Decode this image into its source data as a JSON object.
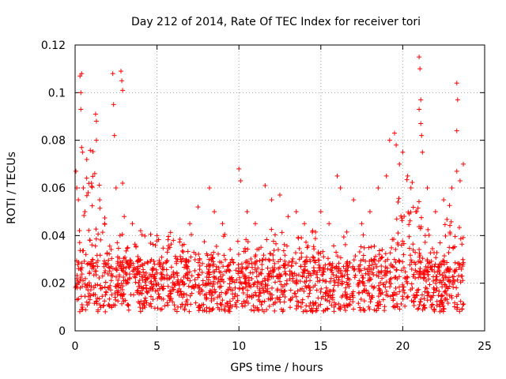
{
  "chart_data": {
    "type": "scatter",
    "title": "Day 212 of 2014, Rate Of TEC Index for receiver tori",
    "xlabel": "GPS time / hours",
    "ylabel": "ROTI / TECUs",
    "xlim": [
      0,
      25
    ],
    "ylim": [
      0,
      0.12
    ],
    "x_ticks": [
      0,
      5,
      10,
      15,
      20,
      25
    ],
    "x_tick_labels": [
      "0",
      "5",
      "10",
      "15",
      "20",
      "25"
    ],
    "y_ticks": [
      0,
      0.02,
      0.04,
      0.06,
      0.08,
      0.1,
      0.12
    ],
    "y_tick_labels": [
      "0",
      "0.02",
      "0.04",
      "0.06",
      "0.08",
      "0.1",
      "0.12"
    ],
    "grid": true,
    "marker": "+",
    "marker_color": "#ff0000",
    "series": [
      {
        "name": "ROTI",
        "description_baseline_range": [
          0.008,
          0.03
        ],
        "points": [
          [
            0.05,
            0.067
          ],
          [
            0.1,
            0.06
          ],
          [
            0.2,
            0.055
          ],
          [
            0.3,
            0.107
          ],
          [
            0.35,
            0.1
          ],
          [
            0.35,
            0.093
          ],
          [
            0.4,
            0.108
          ],
          [
            0.4,
            0.077
          ],
          [
            0.45,
            0.075
          ],
          [
            0.5,
            0.06
          ],
          [
            0.6,
            0.05
          ],
          [
            0.8,
            0.058
          ],
          [
            1.0,
            0.062
          ],
          [
            1.2,
            0.066
          ],
          [
            1.25,
            0.091
          ],
          [
            1.3,
            0.088
          ],
          [
            1.3,
            0.08
          ],
          [
            1.5,
            0.055
          ],
          [
            1.8,
            0.045
          ],
          [
            2.3,
            0.108
          ],
          [
            2.35,
            0.095
          ],
          [
            2.4,
            0.082
          ],
          [
            2.5,
            0.06
          ],
          [
            2.8,
            0.109
          ],
          [
            2.85,
            0.105
          ],
          [
            2.9,
            0.101
          ],
          [
            2.9,
            0.062
          ],
          [
            3.0,
            0.048
          ],
          [
            3.5,
            0.045
          ],
          [
            4.0,
            0.042
          ],
          [
            5.0,
            0.04
          ],
          [
            6.0,
            0.038
          ],
          [
            7.0,
            0.045
          ],
          [
            7.5,
            0.052
          ],
          [
            8.2,
            0.06
          ],
          [
            8.5,
            0.05
          ],
          [
            9.0,
            0.045
          ],
          [
            10.0,
            0.068
          ],
          [
            10.1,
            0.063
          ],
          [
            10.5,
            0.05
          ],
          [
            11.0,
            0.045
          ],
          [
            11.6,
            0.061
          ],
          [
            12.0,
            0.055
          ],
          [
            12.5,
            0.057
          ],
          [
            13.0,
            0.048
          ],
          [
            13.5,
            0.05
          ],
          [
            14.0,
            0.045
          ],
          [
            14.5,
            0.042
          ],
          [
            15.0,
            0.05
          ],
          [
            15.5,
            0.045
          ],
          [
            16.0,
            0.065
          ],
          [
            16.2,
            0.06
          ],
          [
            17.0,
            0.055
          ],
          [
            17.5,
            0.045
          ],
          [
            18.0,
            0.05
          ],
          [
            18.5,
            0.06
          ],
          [
            19.0,
            0.065
          ],
          [
            19.2,
            0.08
          ],
          [
            19.5,
            0.083
          ],
          [
            19.6,
            0.078
          ],
          [
            19.8,
            0.07
          ],
          [
            20.0,
            0.075
          ],
          [
            20.3,
            0.065
          ],
          [
            20.5,
            0.06
          ],
          [
            20.8,
            0.05
          ],
          [
            21.0,
            0.115
          ],
          [
            21.05,
            0.11
          ],
          [
            21.1,
            0.097
          ],
          [
            21.0,
            0.093
          ],
          [
            21.1,
            0.087
          ],
          [
            21.15,
            0.082
          ],
          [
            21.2,
            0.075
          ],
          [
            21.5,
            0.06
          ],
          [
            22.0,
            0.05
          ],
          [
            22.5,
            0.055
          ],
          [
            23.0,
            0.06
          ],
          [
            23.3,
            0.104
          ],
          [
            23.35,
            0.097
          ],
          [
            23.3,
            0.084
          ],
          [
            23.3,
            0.067
          ],
          [
            23.5,
            0.063
          ],
          [
            23.7,
            0.07
          ]
        ]
      }
    ]
  }
}
